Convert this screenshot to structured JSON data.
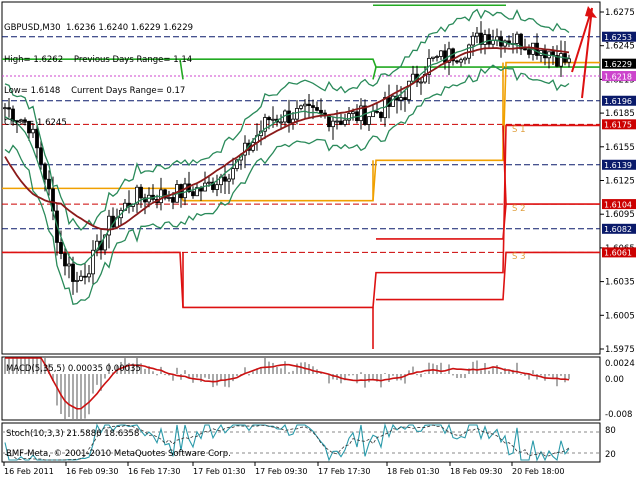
{
  "header": {
    "symbol_line": "GBPUSD,M30  1.6236 1.6240 1.6229 1.6229",
    "high_line": "High= 1.6262    Previous Days Range= 1.14",
    "low_line": "Low= 1.6148    Current Days Range= 0.17",
    "close_line": "Close= 1.6245"
  },
  "price_axis": {
    "ticks": [
      "1.6275",
      "1.6245",
      "1.6215",
      "1.6185",
      "1.6155",
      "1.6125",
      "1.6095",
      "1.6065",
      "1.6035",
      "1.6005",
      "1.5975"
    ],
    "tags": [
      {
        "label": "1.6253",
        "bg": "#0a1a6a",
        "fg": "#ffffff"
      },
      {
        "label": "1.6229",
        "bg": "#000000",
        "fg": "#ffffff"
      },
      {
        "label": "1.6218",
        "bg": "#cc44cc",
        "fg": "#ffffff"
      },
      {
        "label": "1.6196",
        "bg": "#0a1a6a",
        "fg": "#ffffff"
      },
      {
        "label": "1.6175",
        "bg": "#cc0000",
        "fg": "#ffffff"
      },
      {
        "label": "1.6139",
        "bg": "#0a1a6a",
        "fg": "#ffffff"
      },
      {
        "label": "1.6104",
        "bg": "#cc0000",
        "fg": "#ffffff"
      },
      {
        "label": "1.6082",
        "bg": "#0a1a6a",
        "fg": "#ffffff"
      },
      {
        "label": "1.6061",
        "bg": "#cc0000",
        "fg": "#ffffff"
      }
    ]
  },
  "levels": {
    "s1": "S 1",
    "s2": "S 2",
    "s3": "S 3"
  },
  "macd": {
    "label": "MACD(5,35,5) 0.00035 0.00035",
    "ticks": [
      "0.0024",
      "0.00",
      "-0.008"
    ]
  },
  "stoch": {
    "label": "Stoch(10,3,3) 21.5886 18.6358",
    "ticks": [
      "80",
      "20"
    ]
  },
  "copyright": "BMF-Meta, © 2001-2010 MetaQuotes Software Corp.",
  "time_axis": [
    "16 Feb 2011",
    "16 Feb 09:30",
    "16 Feb 17:30",
    "17 Feb 01:30",
    "17 Feb 09:30",
    "17 Feb 17:30",
    "18 Feb 01:30",
    "18 Feb 09:30",
    "20 Feb 18:00"
  ],
  "colors": {
    "bb": "#2a8a5a",
    "ma": "#8b1a1a",
    "green_ch": "#22aa22",
    "orange_ch": "#f0a000",
    "red_ch": "#dd1111",
    "macd_line": "#cc1111",
    "hist": "#aaaaaa"
  }
}
